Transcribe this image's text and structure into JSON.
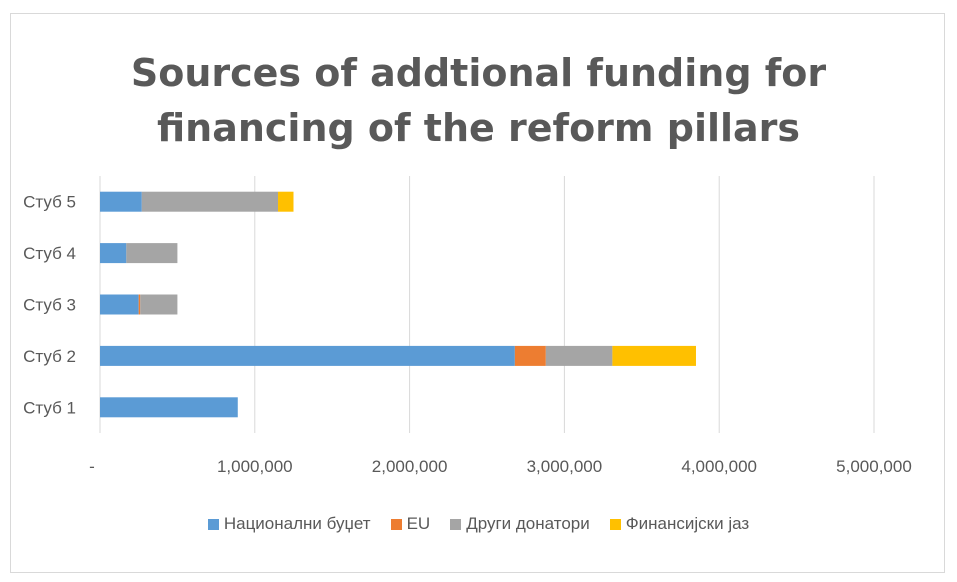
{
  "chart_data": {
    "type": "bar",
    "orientation": "horizontal",
    "stacked": true,
    "title": "Sources of addtional funding for financing of the reform pillars",
    "title_lines": [
      "Sources of addtional funding for",
      "financing of the reform pillars"
    ],
    "categories": [
      "Стуб 1",
      "Стуб 2",
      "Стуб 3",
      "Стуб 4",
      "Стуб 5"
    ],
    "series": [
      {
        "name": "Национални буџет",
        "color": "#5b9bd5",
        "values": [
          890000,
          2680000,
          250000,
          170000,
          270000
        ]
      },
      {
        "name": "EU",
        "color": "#ed7d31",
        "values": [
          0,
          200000,
          10000,
          0,
          0
        ]
      },
      {
        "name": "Други донатори",
        "color": "#a5a5a5",
        "values": [
          0,
          430000,
          240000,
          330000,
          880000
        ]
      },
      {
        "name": "Финансијски јаз",
        "color": "#ffc000",
        "values": [
          0,
          540000,
          0,
          0,
          100000
        ]
      }
    ],
    "xlim": [
      0,
      5000000
    ],
    "x_ticks": [
      0,
      1000000,
      2000000,
      3000000,
      4000000,
      5000000
    ],
    "x_tick_labels": [
      "-",
      "1,000,000",
      "2,000,000",
      "3,000,000",
      "4,000,000",
      "5,000,000"
    ],
    "grid": "vertical",
    "legend_position": "bottom"
  }
}
